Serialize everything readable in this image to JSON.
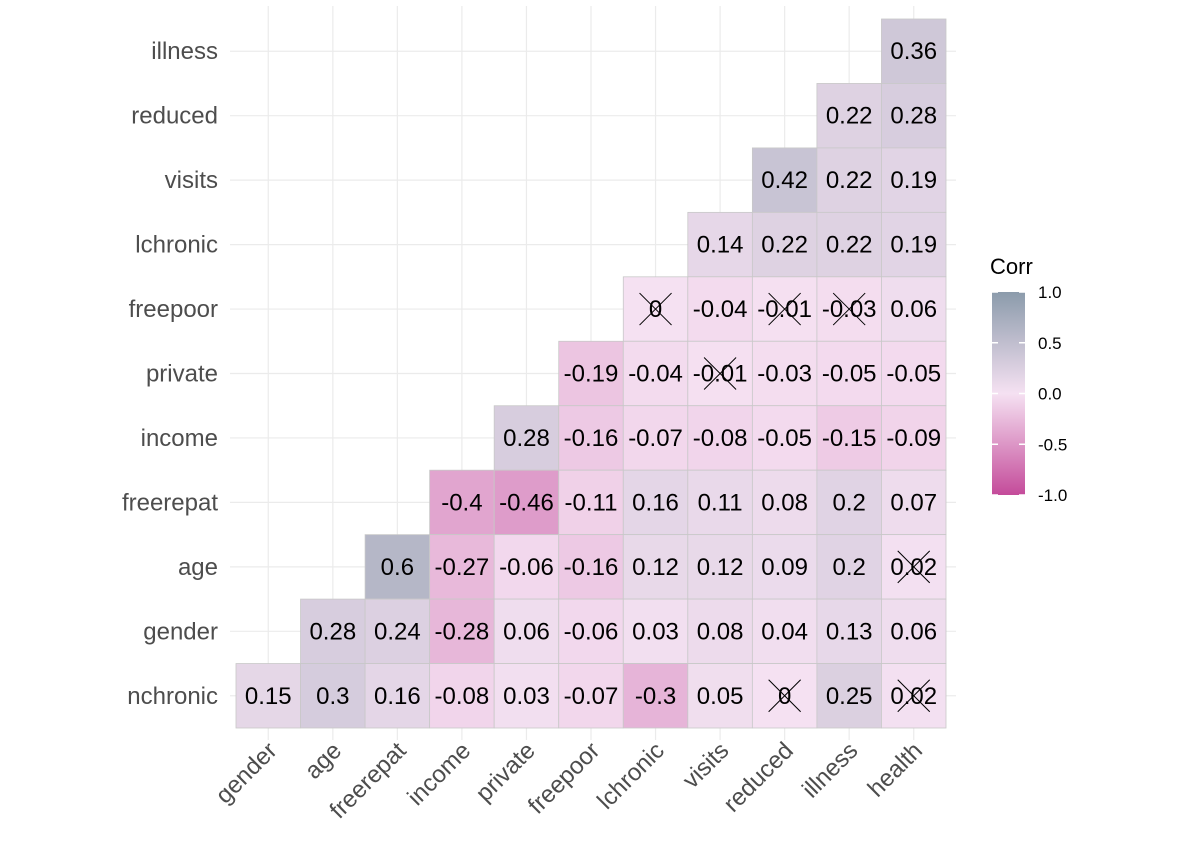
{
  "chart_data": {
    "type": "heatmap",
    "variables": [
      "nchronic",
      "gender",
      "age",
      "freerepat",
      "income",
      "private",
      "freepoor",
      "lchronic",
      "visits",
      "reduced",
      "illness",
      "health"
    ],
    "x_categories": [
      "gender",
      "age",
      "freerepat",
      "income",
      "private",
      "freepoor",
      "lchronic",
      "visits",
      "reduced",
      "illness",
      "health"
    ],
    "y_categories": [
      "nchronic",
      "gender",
      "age",
      "freerepat",
      "income",
      "private",
      "freepoor",
      "lchronic",
      "visits",
      "reduced",
      "illness"
    ],
    "rows": [
      {
        "y": "illness",
        "values": [
          null,
          null,
          null,
          null,
          null,
          null,
          null,
          null,
          null,
          null,
          0.36
        ],
        "labels": [
          "",
          "",
          "",
          "",
          "",
          "",
          "",
          "",
          "",
          "",
          "0.36"
        ]
      },
      {
        "y": "reduced",
        "values": [
          null,
          null,
          null,
          null,
          null,
          null,
          null,
          null,
          null,
          0.22,
          0.28
        ],
        "labels": [
          "",
          "",
          "",
          "",
          "",
          "",
          "",
          "",
          "",
          "0.22",
          "0.28"
        ]
      },
      {
        "y": "visits",
        "values": [
          null,
          null,
          null,
          null,
          null,
          null,
          null,
          null,
          0.42,
          0.22,
          0.19
        ],
        "labels": [
          "",
          "",
          "",
          "",
          "",
          "",
          "",
          "",
          "0.42",
          "0.22",
          "0.19"
        ]
      },
      {
        "y": "lchronic",
        "values": [
          null,
          null,
          null,
          null,
          null,
          null,
          null,
          0.14,
          0.22,
          0.22,
          0.19
        ],
        "labels": [
          "",
          "",
          "",
          "",
          "",
          "",
          "",
          "0.14",
          "0.22",
          "0.22",
          "0.19"
        ]
      },
      {
        "y": "freepoor",
        "values": [
          null,
          null,
          null,
          null,
          null,
          null,
          0,
          -0.04,
          -0.01,
          -0.03,
          0.06
        ],
        "labels": [
          "",
          "",
          "",
          "",
          "",
          "",
          "0",
          "-0.04",
          "-0.01",
          "-0.03",
          "0.06"
        ]
      },
      {
        "y": "private",
        "values": [
          null,
          null,
          null,
          null,
          null,
          -0.19,
          -0.04,
          -0.01,
          -0.03,
          -0.05,
          -0.05
        ],
        "labels": [
          "",
          "",
          "",
          "",
          "",
          "-0.19",
          "-0.04",
          "-0.01",
          "-0.03",
          "-0.05",
          "-0.05"
        ]
      },
      {
        "y": "income",
        "values": [
          null,
          null,
          null,
          null,
          0.28,
          -0.16,
          -0.07,
          -0.08,
          -0.05,
          -0.15,
          -0.09
        ],
        "labels": [
          "",
          "",
          "",
          "",
          "0.28",
          "-0.16",
          "-0.07",
          "-0.08",
          "-0.05",
          "-0.15",
          "-0.09"
        ]
      },
      {
        "y": "freerepat",
        "values": [
          null,
          null,
          null,
          -0.4,
          -0.46,
          -0.11,
          0.16,
          0.11,
          0.08,
          0.2,
          0.07
        ],
        "labels": [
          "",
          "",
          "",
          "-0.4",
          "-0.46",
          "-0.11",
          "0.16",
          "0.11",
          "0.08",
          "0.2",
          "0.07"
        ]
      },
      {
        "y": "age",
        "values": [
          null,
          null,
          0.6,
          -0.27,
          -0.06,
          -0.16,
          0.12,
          0.12,
          0.09,
          0.2,
          0.02
        ],
        "labels": [
          "",
          "",
          "0.6",
          "-0.27",
          "-0.06",
          "-0.16",
          "0.12",
          "0.12",
          "0.09",
          "0.2",
          "0.02"
        ]
      },
      {
        "y": "gender",
        "values": [
          null,
          0.28,
          0.24,
          -0.28,
          0.06,
          -0.06,
          0.03,
          0.08,
          0.04,
          0.13,
          0.06
        ],
        "labels": [
          "",
          "0.28",
          "0.24",
          "-0.28",
          "0.06",
          "-0.06",
          "0.03",
          "0.08",
          "0.04",
          "0.13",
          "0.06"
        ]
      },
      {
        "y": "nchronic",
        "values": [
          0.15,
          0.3,
          0.16,
          -0.08,
          0.03,
          -0.07,
          -0.3,
          0.05,
          0,
          0.25,
          0.02
        ],
        "labels": [
          "0.15",
          "0.3",
          "0.16",
          "-0.08",
          "0.03",
          "-0.07",
          "-0.3",
          "0.05",
          "0",
          "0.25",
          "0.02"
        ]
      }
    ],
    "insignificant": [
      {
        "x": "lchronic",
        "y": "freepoor"
      },
      {
        "x": "reduced",
        "y": "freepoor"
      },
      {
        "x": "illness",
        "y": "freepoor"
      },
      {
        "x": "visits",
        "y": "private"
      },
      {
        "x": "health",
        "y": "age"
      },
      {
        "x": "reduced",
        "y": "nchronic"
      },
      {
        "x": "health",
        "y": "nchronic"
      }
    ],
    "legend": {
      "title": "Corr",
      "ticks": [
        "1.0",
        "0.5",
        "0.0",
        "-0.5",
        "-1.0"
      ],
      "tick_values": [
        1,
        0.5,
        0,
        -0.5,
        -1
      ],
      "placement": "right"
    },
    "color_scale": {
      "low": "#c44b9a",
      "mid": "#f5e1f2",
      "high": "#8b9bab",
      "limits": [
        -1,
        1
      ]
    },
    "grid": true
  }
}
